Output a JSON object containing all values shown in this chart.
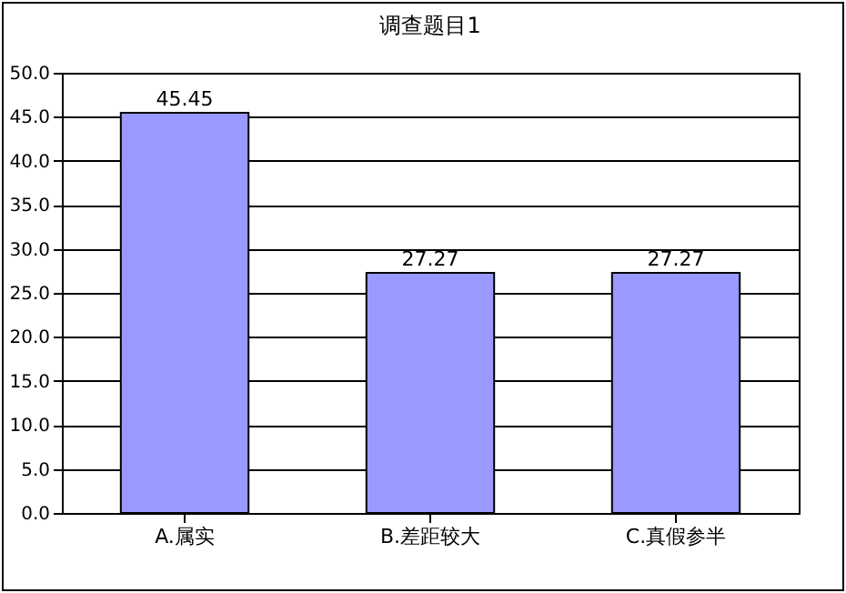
{
  "chart_data": {
    "type": "bar",
    "title": "调查题目1",
    "categories": [
      "A.属实",
      "B.差距较大",
      "C.真假参半"
    ],
    "values": [
      45.45,
      27.27,
      27.27
    ],
    "color": "#9999ff",
    "data_labels": true,
    "ylim": [
      0,
      50
    ],
    "yticks": [
      {
        "value": 0,
        "label": "0.0"
      },
      {
        "value": 5,
        "label": "5.0"
      },
      {
        "value": 10,
        "label": "10.0"
      },
      {
        "value": 15,
        "label": "15.0"
      },
      {
        "value": 20,
        "label": "20.0"
      },
      {
        "value": 25,
        "label": "25.0"
      },
      {
        "value": 30,
        "label": "30.0"
      },
      {
        "value": 35,
        "label": "35.0"
      },
      {
        "value": 40,
        "label": "40.0"
      },
      {
        "value": 45,
        "label": "45.0"
      },
      {
        "value": 50,
        "label": "50.0"
      }
    ],
    "grid": "y"
  }
}
